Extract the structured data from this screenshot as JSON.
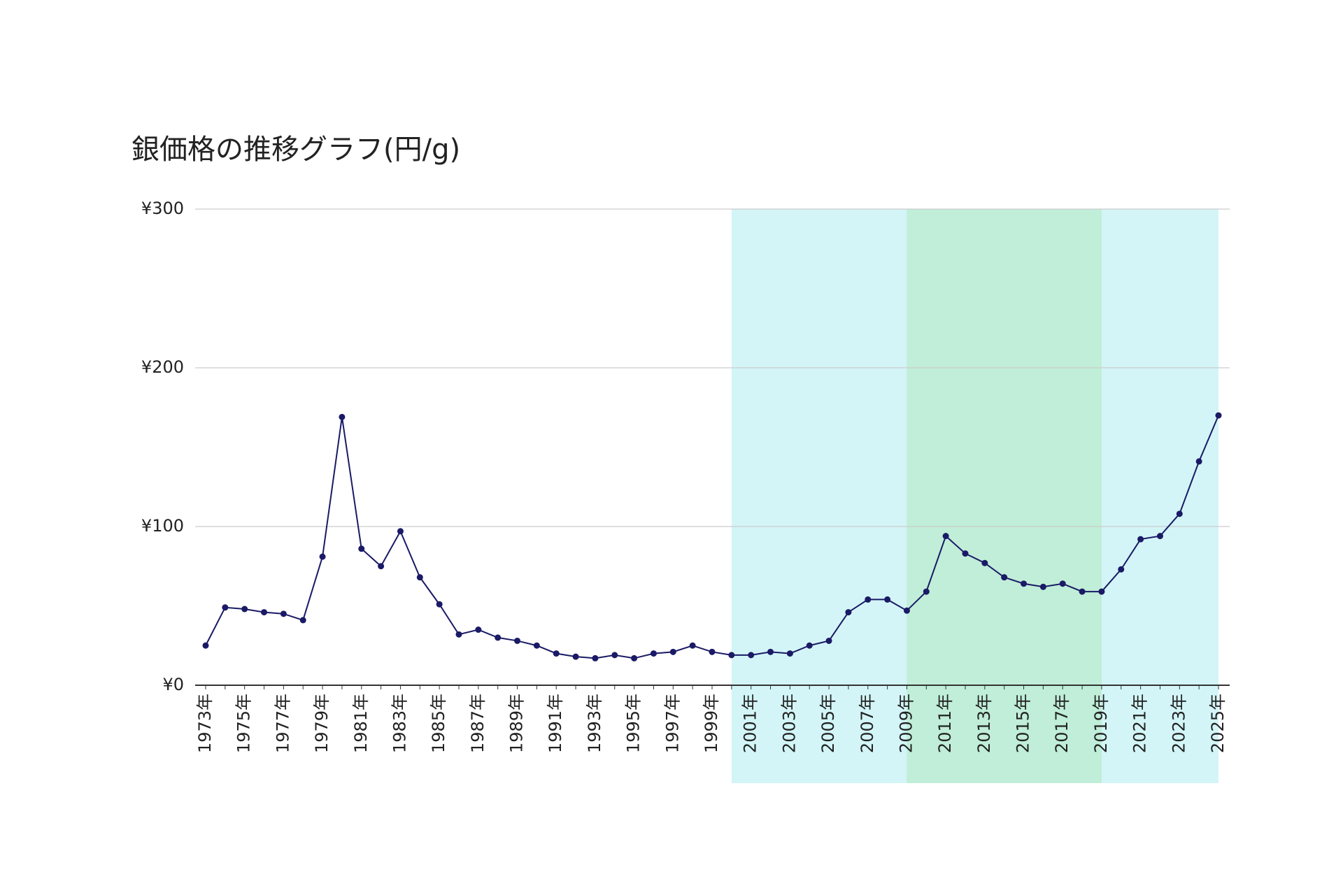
{
  "chart_data": {
    "type": "line",
    "title": "銀価格の推移グラフ(円/g)",
    "categories": [
      "1973年",
      null,
      "1975年",
      null,
      "1977年",
      null,
      "1979年",
      null,
      "1981年",
      null,
      "1983年",
      null,
      "1985年",
      null,
      "1987年",
      null,
      "1989年",
      null,
      "1991年",
      null,
      "1993年",
      null,
      "1995年",
      null,
      "1997年",
      null,
      "1999年",
      null,
      "2001年",
      null,
      "2003年",
      null,
      "2005年",
      null,
      "2007年",
      null,
      "2009年",
      null,
      "2011年",
      null,
      "2013年",
      null,
      "2015年",
      null,
      "2017年",
      null,
      "2019年",
      null,
      "2021年",
      null,
      "2023年",
      null,
      "2025年"
    ],
    "series": [
      {
        "name": "銀価格",
        "color": "#1a1a66",
        "values": [
          25,
          49,
          48,
          46,
          45,
          41,
          81,
          169,
          86,
          75,
          97,
          68,
          51,
          32,
          35,
          30,
          28,
          25,
          20,
          18,
          17,
          19,
          17,
          20,
          21,
          25,
          21,
          19,
          19,
          21,
          20,
          25,
          28,
          46,
          54,
          54,
          47,
          59,
          94,
          83,
          77,
          68,
          64,
          62,
          64,
          59,
          59,
          73,
          92,
          94,
          108,
          141,
          170
        ]
      }
    ],
    "ylim": [
      0,
      300
    ],
    "yticks": [
      {
        "value": 0,
        "label": "¥0"
      },
      {
        "value": 100,
        "label": "¥100"
      },
      {
        "value": 200,
        "label": "¥200"
      },
      {
        "value": 300,
        "label": "¥300"
      }
    ],
    "grid": true,
    "bands": [
      {
        "start": 2000,
        "end": 2025,
        "color": "#d3f5f7"
      },
      {
        "start": 2009,
        "end": 2019,
        "color": "#c0eed8"
      }
    ]
  }
}
